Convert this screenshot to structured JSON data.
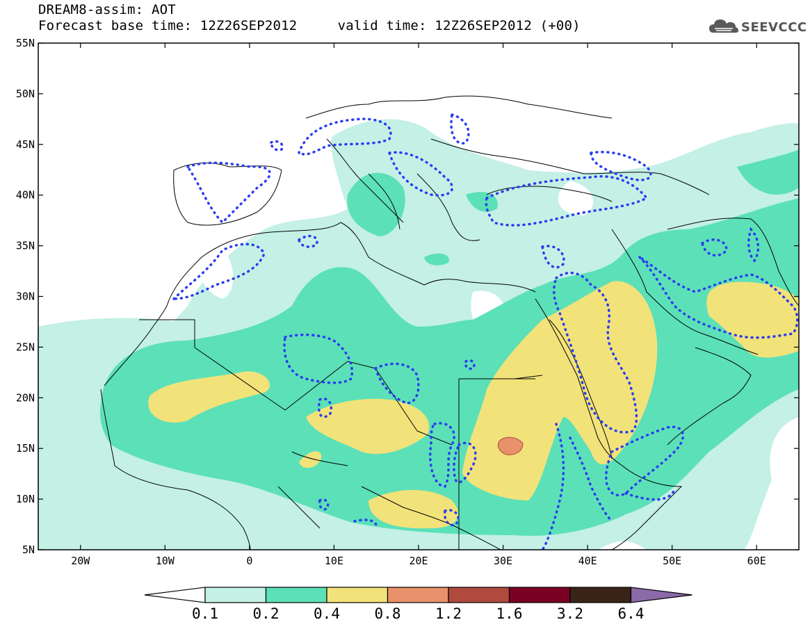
{
  "header": {
    "title_line1": "DREAM8-assim: AOT",
    "title_line2": "Forecast base time: 12Z26SEP2012     valid time: 12Z26SEP2012 (+00)"
  },
  "brand": {
    "name": "SEEVCCC",
    "logo_icon": "cloud-logo-icon"
  },
  "map": {
    "lon_range": [
      -25,
      65
    ],
    "lat_range": [
      5,
      55
    ],
    "lat_labels": [
      "55N",
      "50N",
      "45N",
      "40N",
      "35N",
      "30N",
      "25N",
      "20N",
      "15N",
      "10N",
      "5N"
    ],
    "lon_labels": [
      "20W",
      "10W",
      "0",
      "10E",
      "20E",
      "30E",
      "40E",
      "50E",
      "60E"
    ],
    "lat_values": [
      55,
      50,
      45,
      40,
      35,
      30,
      25,
      20,
      15,
      10,
      5
    ],
    "lon_values": [
      -20,
      -10,
      0,
      10,
      20,
      30,
      40,
      50,
      60
    ]
  },
  "legend": {
    "colors": [
      "#ffffff",
      "#c4f0e6",
      "#5ce0b8",
      "#f2e27a",
      "#e8916a",
      "#b04a3e",
      "#7a0024",
      "#3a2418",
      "#8a6aa8"
    ],
    "labels": [
      "0.1",
      "0.2",
      "0.4",
      "0.8",
      "1.2",
      "1.6",
      "3.2",
      "6.4"
    ]
  },
  "contour_colors": {
    "dust_surface": "#2a3cf0",
    "coastline": "#000000"
  }
}
